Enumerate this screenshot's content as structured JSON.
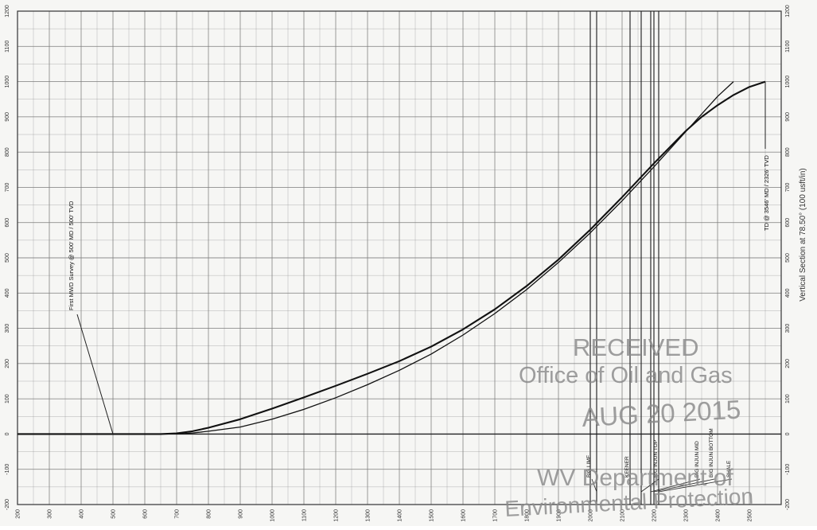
{
  "chart_data": {
    "type": "line",
    "xlabel": "",
    "ylabel": "Vertical Section at 78.50° (100 usft/in)",
    "xlim": [
      200,
      2600
    ],
    "ylim": [
      -200,
      1200
    ],
    "x_ticks": [
      200,
      300,
      400,
      500,
      600,
      700,
      800,
      900,
      1000,
      1100,
      1200,
      1300,
      1400,
      1500,
      1600,
      1700,
      1800,
      1900,
      2000,
      2100,
      2200,
      2300,
      2400,
      2500,
      2600
    ],
    "x_tick_labels_shown": [
      "200",
      "300",
      "400",
      "500",
      "600",
      "700",
      "800",
      "900",
      "1000",
      "1100",
      "1200",
      "1300",
      "1400",
      "1500",
      "1600",
      "1700",
      "1800",
      "1900",
      "2000",
      "2100",
      "2200",
      "2300",
      "2400",
      "2500"
    ],
    "y_ticks": [
      -200,
      -100,
      0,
      100,
      200,
      300,
      400,
      500,
      600,
      700,
      800,
      900,
      1000,
      1100,
      1200
    ],
    "y_tick_labels_shown": [
      "-200",
      "-100",
      "0",
      "100",
      "200",
      "300",
      "400",
      "500",
      "600",
      "700",
      "800",
      "900",
      "1000",
      "1100",
      "1200"
    ],
    "grid": true,
    "series": [
      {
        "x": [
          200,
          500,
          650,
          700,
          750,
          800,
          900,
          1000,
          1100,
          1200,
          1300,
          1400,
          1500,
          1600,
          1700,
          1800,
          1900,
          2000,
          2100,
          2200,
          2300,
          2350,
          2400,
          2450,
          2500,
          2550
        ],
        "y": [
          0,
          0,
          0,
          2,
          8,
          18,
          42,
          72,
          104,
          137,
          171,
          207,
          248,
          297,
          354,
          420,
          495,
          580,
          672,
          768,
          860,
          900,
          933,
          962,
          985,
          1000
        ]
      },
      {
        "x": [
          700,
          750,
          800,
          900,
          1000,
          1100,
          1200,
          1300,
          1400,
          1500,
          1600,
          1700,
          1800,
          1900,
          2000,
          2100,
          2200,
          2300,
          2350,
          2400,
          2450
        ],
        "y": [
          0,
          3,
          8,
          20,
          42,
          70,
          103,
          140,
          181,
          227,
          281,
          342,
          410,
          487,
          571,
          662,
          758,
          858,
          908,
          958,
          1000
        ]
      }
    ],
    "formation_lines_x": [
      2000,
      2020,
      2125,
      2160,
      2190,
      2200,
      2215
    ],
    "formation_labels": [
      {
        "text": "BIG LIME",
        "x": 2000
      },
      {
        "text": "KEENER",
        "x": 2120
      },
      {
        "text": "BIG INJUN TOP",
        "x": 2210
      },
      {
        "text": "BIG INJUN MID",
        "x": 2340
      },
      {
        "text": "BIG INJUN BOTTOM",
        "x": 2385
      },
      {
        "text": "SHALE",
        "x": 2440
      }
    ],
    "annotations": [
      {
        "text": "First MWD Survey @ 500' MD / 500' TVD",
        "point": [
          500,
          0
        ]
      },
      {
        "text": "TD @ 3546' MD / 2326' TVD",
        "point": [
          2550,
          1000
        ]
      }
    ],
    "stamp": {
      "lines": [
        "RECEIVED",
        "Office of Oil and Gas",
        "AUG 20 2015",
        "WV Department of",
        "Environmental Protection"
      ],
      "color": "#8a8a8a"
    }
  },
  "colors": {
    "background": "#f6f6f4",
    "grid": "#7d7d7d",
    "curve": "#111111"
  }
}
